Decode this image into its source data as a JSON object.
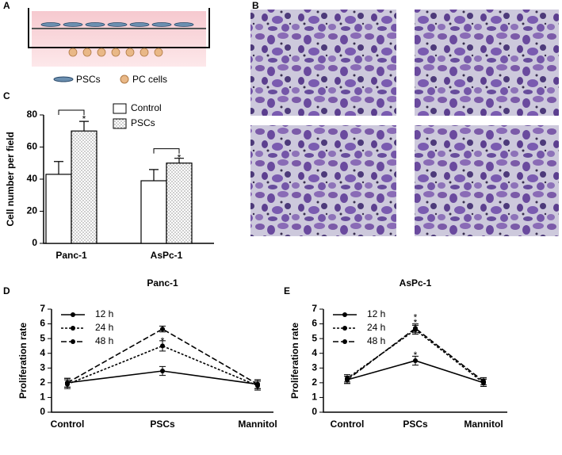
{
  "panel_labels": [
    "A",
    "B",
    "C",
    "D",
    "E"
  ],
  "schematic": {
    "legend": [
      "PSCs",
      "PC cells"
    ]
  },
  "chart_data": [
    {
      "type": "bar",
      "ylabel": "Cell number per field",
      "categories": [
        "Panc-1",
        "AsPc-1"
      ],
      "series": [
        {
          "name": "Control",
          "color": "#ffffff",
          "fill_style": "solid",
          "values": [
            43,
            39
          ],
          "errors": [
            8,
            7
          ]
        },
        {
          "name": "PSCs",
          "color": "#ffffff",
          "fill_style": "dotted",
          "values": [
            70,
            50
          ],
          "errors": [
            6,
            3
          ]
        }
      ],
      "ylim": [
        0,
        80
      ],
      "yticks": [
        0,
        20,
        40,
        60,
        80
      ],
      "annotations": [
        {
          "text": "*",
          "x": "Panc-1",
          "y": 79
        },
        {
          "text": "*",
          "x": "AsPc-1",
          "y": 55
        }
      ]
    },
    {
      "type": "line",
      "title": "Panc-1",
      "ylabel": "Proliferation rate",
      "categories": [
        "Control",
        "PSCs",
        "Mannitol"
      ],
      "series": [
        {
          "name": "12 h",
          "color": "#000000",
          "dash": "solid",
          "values": [
            2.0,
            2.8,
            1.9
          ],
          "errors": [
            0.3,
            0.3,
            0.3
          ]
        },
        {
          "name": "24 h",
          "color": "#000000",
          "dash": "dotted",
          "values": [
            1.9,
            4.5,
            1.8
          ],
          "errors": [
            0.3,
            0.35,
            0.3
          ]
        },
        {
          "name": "48 h",
          "color": "#000000",
          "dash": "dashed",
          "values": [
            2.0,
            5.65,
            1.9
          ],
          "errors": [
            0.3,
            0.2,
            0.3
          ]
        }
      ],
      "ylim": [
        0,
        7
      ],
      "yticks": [
        0,
        1,
        2,
        3,
        4,
        5,
        6,
        7
      ],
      "annotations": [
        {
          "text": "*",
          "x": "PSCs",
          "y": 4.95
        }
      ]
    },
    {
      "type": "line",
      "title": "AsPc-1",
      "ylabel": "Proliferation rate",
      "categories": [
        "Control",
        "PSCs",
        "Mannitol"
      ],
      "series": [
        {
          "name": "12 h",
          "color": "#000000",
          "dash": "solid",
          "values": [
            2.2,
            3.5,
            2.0
          ],
          "errors": [
            0.25,
            0.3,
            0.25
          ]
        },
        {
          "name": "24 h",
          "color": "#000000",
          "dash": "dotted",
          "values": [
            2.3,
            5.6,
            2.0
          ],
          "errors": [
            0.25,
            0.3,
            0.25
          ]
        },
        {
          "name": "48 h",
          "color": "#000000",
          "dash": "dashed",
          "values": [
            2.2,
            5.7,
            2.1
          ],
          "errors": [
            0.25,
            0.3,
            0.25
          ]
        }
      ],
      "ylim": [
        0,
        7
      ],
      "yticks": [
        0,
        1,
        2,
        3,
        4,
        5,
        6,
        7
      ],
      "annotations": [
        {
          "text": "*",
          "x": "PSCs",
          "y": 6.55
        },
        {
          "text": "*",
          "x": "PSCs",
          "y": 6.2
        },
        {
          "text": "*",
          "x": "PSCs",
          "y": 4.0
        }
      ]
    }
  ]
}
